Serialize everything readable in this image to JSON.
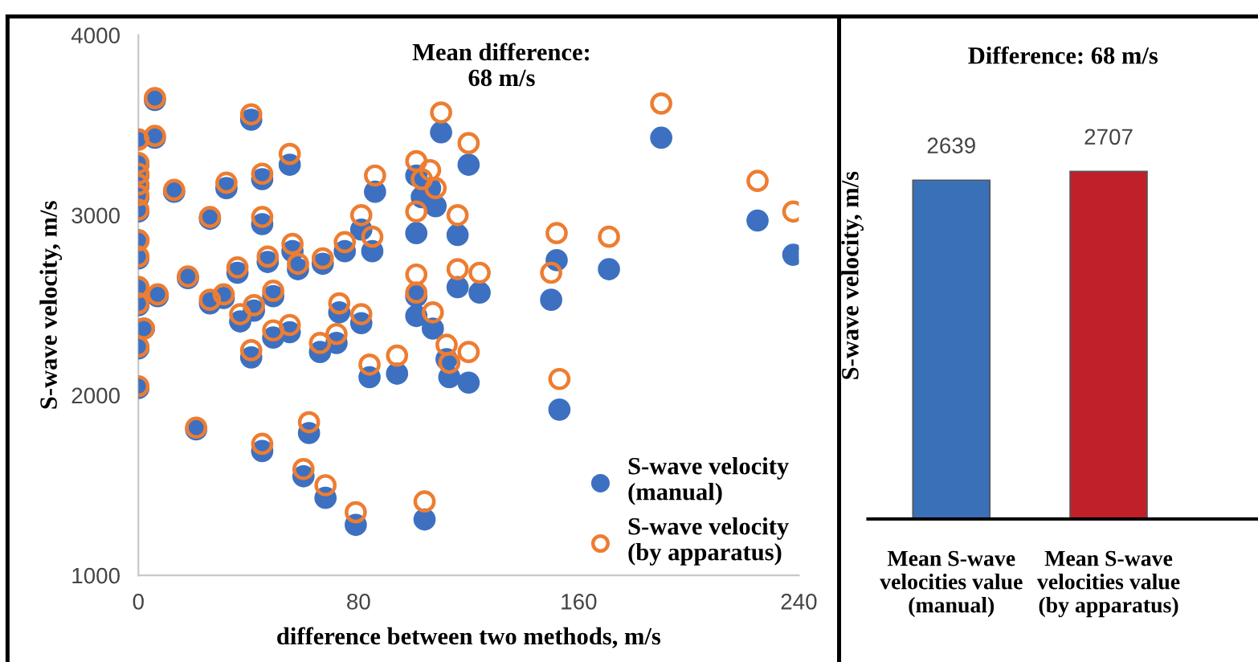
{
  "chart_data": [
    {
      "type": "scatter",
      "xlabel": "difference between two methods, m/s",
      "ylabel": "S-wave velocity, m/s",
      "annotations": [
        "Mean difference:\n68 m/s"
      ],
      "xlim": [
        0,
        240
      ],
      "xticks": [
        0,
        80,
        160,
        240
      ],
      "ylim": [
        1000,
        4000
      ],
      "yticks": [
        1000,
        2000,
        3000,
        4000
      ],
      "grid": false,
      "legend": "bottom right",
      "marker": "circle",
      "x": [
        0,
        0,
        0,
        0,
        0,
        0,
        0,
        0,
        0,
        0,
        0,
        0,
        2,
        6,
        6,
        7,
        13,
        18,
        21,
        26,
        26,
        31,
        32,
        36,
        37,
        41,
        41,
        42,
        45,
        45,
        45,
        47,
        49,
        49,
        55,
        55,
        56,
        58,
        60,
        62,
        66,
        67,
        68,
        72,
        73,
        75,
        79,
        81,
        81,
        84,
        85,
        86,
        94,
        101,
        101,
        101,
        101,
        103,
        104,
        106,
        107,
        108,
        110,
        112,
        113,
        116,
        116,
        120,
        120,
        124,
        150,
        152,
        153,
        171,
        190,
        225,
        238
      ],
      "series": [
        {
          "name": "S-wave velocity (manual)",
          "color": "#3d70c0",
          "values": [
            3420,
            3280,
            3220,
            3160,
            3100,
            3020,
            2860,
            2760,
            2600,
            2500,
            2260,
            2040,
            2370,
            3640,
            3430,
            2550,
            3130,
            2650,
            1810,
            2980,
            2510,
            2540,
            3150,
            2680,
            2410,
            3530,
            2210,
            2470,
            3200,
            2950,
            1690,
            2740,
            2550,
            2320,
            3280,
            2350,
            2800,
            2700,
            1550,
            1790,
            2240,
            2730,
            1430,
            2290,
            2460,
            2800,
            1280,
            2400,
            2920,
            2100,
            2800,
            3130,
            2120,
            3220,
            2900,
            2550,
            2440,
            3100,
            1310,
            3150,
            2370,
            3050,
            3460,
            2200,
            2100,
            2600,
            2890,
            3280,
            2070,
            2570,
            2530,
            2750,
            1920,
            2700,
            3430,
            2970,
            2780
          ]
        },
        {
          "name": "S-wave velocity (by apparatus)",
          "color": "#ed7d31",
          "values": [
            3420,
            3290,
            3230,
            3170,
            3110,
            3030,
            2860,
            2770,
            2600,
            2510,
            2270,
            2050,
            2370,
            3650,
            3440,
            2560,
            3140,
            2660,
            1820,
            2990,
            2530,
            2560,
            3180,
            2710,
            2450,
            3560,
            2250,
            2500,
            3230,
            2990,
            1730,
            2770,
            2580,
            2360,
            3340,
            2390,
            2840,
            2730,
            1590,
            1850,
            2290,
            2760,
            1500,
            2340,
            2510,
            2850,
            1350,
            2450,
            3000,
            2170,
            2880,
            3220,
            2220,
            3300,
            3020,
            2670,
            2570,
            3200,
            1410,
            3250,
            2460,
            3150,
            3570,
            2280,
            2180,
            2700,
            3000,
            3400,
            2240,
            2680,
            2680,
            2900,
            2090,
            2880,
            3620,
            3190,
            3020
          ]
        }
      ]
    },
    {
      "type": "bar",
      "title": "Difference: 68 m/s",
      "ylabel": "S-wave velocity, m/s",
      "categories": [
        "Mean S-wave\nvelocities value\n(manual)",
        "Mean S-wave\nvelocities value\n(by apparatus)"
      ],
      "values": [
        2639,
        2707
      ],
      "colors": [
        "#3a70b8",
        "#c0202a"
      ],
      "data_labels": true,
      "tick_labels": "x",
      "grid": false
    }
  ]
}
